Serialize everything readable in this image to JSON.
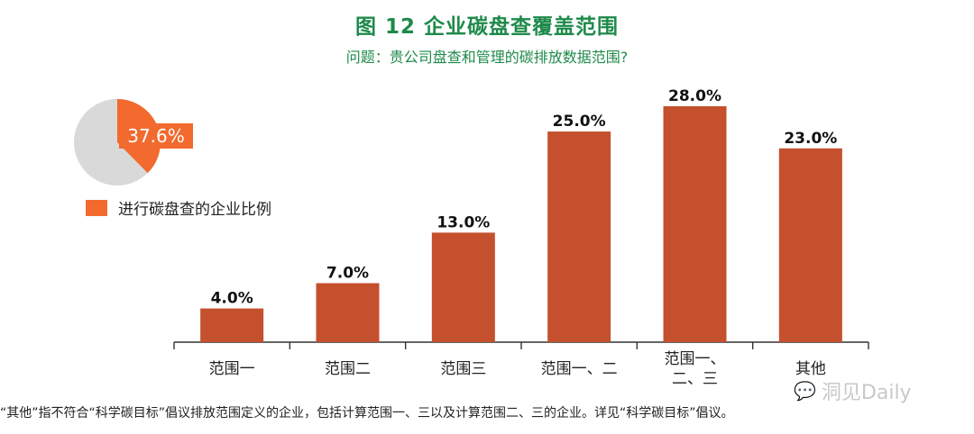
{
  "title": "图 12  企业碳盘查覆盖范围",
  "subtitle": "问题：贵公司盘查和管理的碳排放数据范围?",
  "pie": {
    "value": 37.6,
    "label": "37.6%",
    "legend": "进行碳盘查的企业比例",
    "colors": {
      "slice": "#f26a2e",
      "rest": "#d9d9d9"
    }
  },
  "chart_data": {
    "type": "bar",
    "categories": [
      "范围一",
      "范围二",
      "范围三",
      "范围一、二",
      "范围一、\n二、三",
      "其他"
    ],
    "values": [
      4.0,
      7.0,
      13.0,
      25.0,
      28.0,
      23.0
    ],
    "value_labels": [
      "4.0%",
      "7.0%",
      "13.0%",
      "25.0%",
      "28.0%",
      "23.0%"
    ],
    "title": "",
    "xlabel": "",
    "ylabel": "",
    "ylim": [
      0,
      30
    ],
    "grid": false,
    "bar_color": "#c4502d"
  },
  "footnote": "“其他”指不符合“科学碳目标”倡议排放范围定义的企业，包括计算范围一、三以及计算范围二、三的企业。详见“科学碳目标”倡议。",
  "watermark": {
    "text": "洞见Daily",
    "icon": "wechat-icon"
  }
}
